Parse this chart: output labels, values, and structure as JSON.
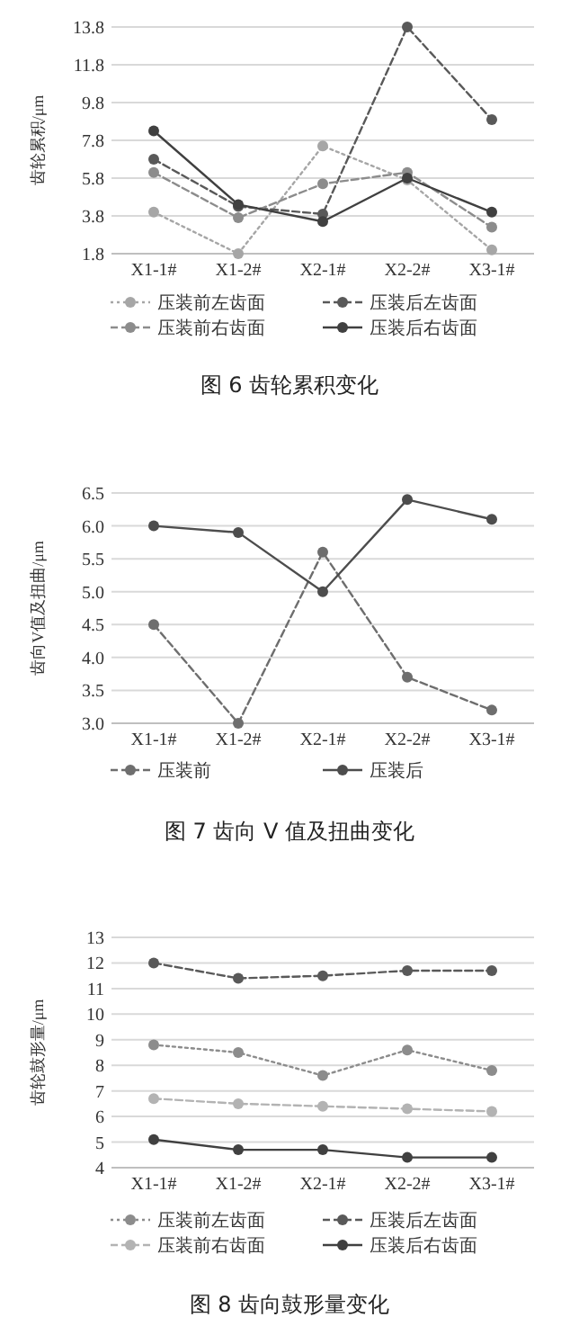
{
  "chart_data": [
    {
      "type": "line",
      "title": "图 6 齿轮累积变化",
      "ylabel": "齿轮累积/μm",
      "categories": [
        "X1-1#",
        "X1-2#",
        "X2-1#",
        "X2-2#",
        "X3-1#"
      ],
      "ylim": [
        1.8,
        13.8
      ],
      "yticks": [
        1.8,
        3.8,
        5.8,
        7.8,
        9.8,
        11.8,
        13.8
      ],
      "grid": "y",
      "legend": "bottom",
      "marker": "circle",
      "series": [
        {
          "name": "压装前左齿面",
          "color": "#a6a6a6",
          "line_style": "dotted",
          "values": [
            4.0,
            1.8,
            7.5,
            5.7,
            2.0
          ]
        },
        {
          "name": "压装后左齿面",
          "color": "#595959",
          "line_style": "dashed",
          "values": [
            6.8,
            4.3,
            3.9,
            13.8,
            8.9
          ]
        },
        {
          "name": "压装前右齿面",
          "color": "#8c8c8c",
          "line_style": "dashed",
          "values": [
            6.1,
            3.7,
            5.5,
            6.1,
            3.2
          ]
        },
        {
          "name": "压装后右齿面",
          "color": "#404040",
          "line_style": "solid",
          "values": [
            8.3,
            4.4,
            3.5,
            5.8,
            4.0
          ]
        }
      ]
    },
    {
      "type": "line",
      "title": "图 7 齿向 V 值及扭曲变化",
      "ylabel": "齿向V值及扭曲/μm",
      "categories": [
        "X1-1#",
        "X1-2#",
        "X2-1#",
        "X2-2#",
        "X3-1#"
      ],
      "ylim": [
        3.0,
        6.5
      ],
      "yticks": [
        {
          "value": 3.0,
          "label": "3.0"
        },
        3.5,
        {
          "value": 4.0,
          "label": "4.0"
        },
        4.5,
        {
          "value": 5.0,
          "label": "5.0"
        },
        5.5,
        {
          "value": 6.0,
          "label": "6.0"
        },
        6.5
      ],
      "grid": "y",
      "legend": "bottom",
      "marker": "circle",
      "series": [
        {
          "name": "压装前",
          "color": "#6e6e6e",
          "line_style": "dashed",
          "values": [
            4.5,
            3.0,
            5.6,
            3.7,
            3.2
          ]
        },
        {
          "name": "压装后",
          "color": "#4d4d4d",
          "line_style": "solid",
          "values": [
            6.0,
            5.9,
            5.0,
            6.4,
            6.1
          ]
        }
      ]
    },
    {
      "type": "line",
      "title": "图 8 齿向鼓形量变化",
      "ylabel": "齿轮鼓形量/μm",
      "categories": [
        "X1-1#",
        "X1-2#",
        "X2-1#",
        "X2-2#",
        "X3-1#"
      ],
      "ylim": [
        4,
        13
      ],
      "yticks": [
        4,
        5,
        6,
        7,
        8,
        9,
        10,
        11,
        12,
        13
      ],
      "grid": "y",
      "legend": "bottom",
      "marker": "circle",
      "series": [
        {
          "name": "压装前左齿面",
          "color": "#8c8c8c",
          "line_style": "dotted",
          "values": [
            8.8,
            8.5,
            7.6,
            8.6,
            7.8
          ]
        },
        {
          "name": "压装后左齿面",
          "color": "#595959",
          "line_style": "dashed",
          "values": [
            12.0,
            11.4,
            11.5,
            11.7,
            11.7
          ]
        },
        {
          "name": "压装前右齿面",
          "color": "#b3b3b3",
          "line_style": "dashed",
          "values": [
            6.7,
            6.5,
            6.4,
            6.3,
            6.2
          ]
        },
        {
          "name": "压装后右齿面",
          "color": "#404040",
          "line_style": "solid",
          "values": [
            5.1,
            4.7,
            4.7,
            4.4,
            4.4
          ]
        }
      ]
    }
  ]
}
